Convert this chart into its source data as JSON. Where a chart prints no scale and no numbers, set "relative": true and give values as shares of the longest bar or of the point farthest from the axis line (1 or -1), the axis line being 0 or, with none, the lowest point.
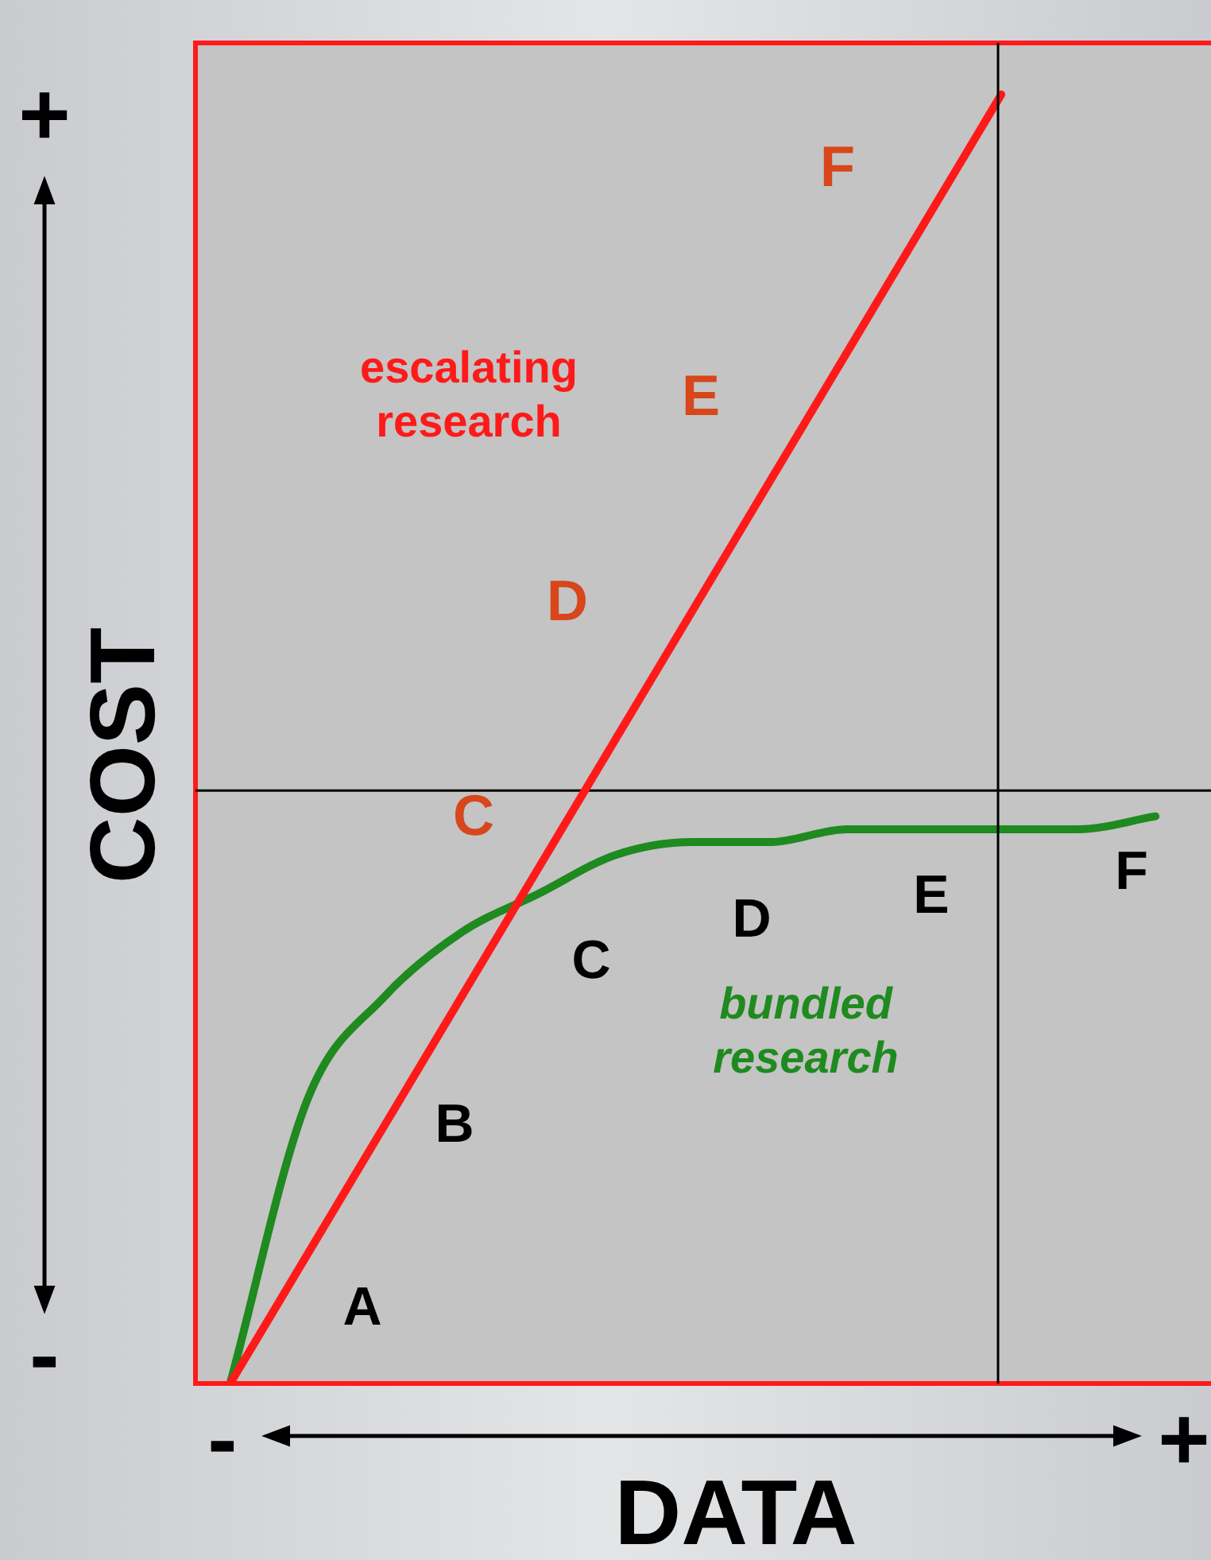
{
  "chart_data": {
    "type": "line",
    "relative": true,
    "xlabel": "DATA",
    "ylabel": "COST",
    "categories": [
      null,
      null,
      null,
      null,
      null,
      null,
      null,
      null,
      null,
      null,
      null,
      null,
      null
    ],
    "series": [
      {
        "name": "escalating research",
        "color": "#ff1a1a",
        "values": [
          0,
          0.1,
          0.2,
          0.3,
          0.4,
          0.5,
          0.6,
          0.7,
          0.8,
          0.9,
          1,
          null,
          null
        ]
      },
      {
        "name": "bundled research",
        "color": "#1f8a1f",
        "values": [
          0,
          0.22,
          0.3,
          0.35,
          0.38,
          0.41,
          0.42,
          0.42,
          0.43,
          0.43,
          0.43,
          0.43,
          0.44
        ]
      }
    ],
    "ref_lines": [
      {
        "axis": "y",
        "value": 0.46,
        "color": "#000000"
      }
    ],
    "annotations": [
      "+",
      "-",
      "-",
      "+",
      "F",
      "E",
      "D",
      "C",
      "A",
      "B",
      "C",
      "D",
      "E",
      "F"
    ],
    "legend": false,
    "marker": "none",
    "line_style": "solid"
  }
}
